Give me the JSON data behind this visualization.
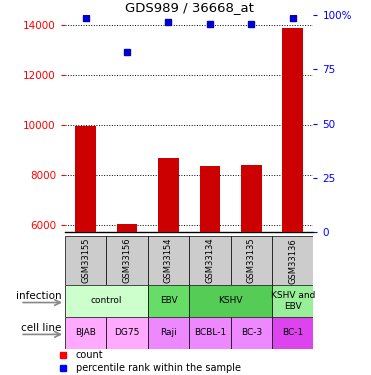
{
  "title": "GDS989 / 36668_at",
  "samples": [
    "GSM33155",
    "GSM33156",
    "GSM33154",
    "GSM33134",
    "GSM33135",
    "GSM33136"
  ],
  "counts": [
    9950,
    6020,
    8700,
    8350,
    8400,
    13900
  ],
  "percentile_ranks": [
    98.5,
    83,
    97,
    96,
    96,
    98.5
  ],
  "ylim_left": [
    5700,
    14400
  ],
  "ylim_right": [
    0,
    100
  ],
  "yticks_left": [
    6000,
    8000,
    10000,
    12000,
    14000
  ],
  "yticks_right": [
    0,
    25,
    50,
    75,
    100
  ],
  "infection_data": [
    {
      "label": "control",
      "start": 0,
      "end": 2,
      "color": "#ccffcc"
    },
    {
      "label": "EBV",
      "start": 2,
      "end": 3,
      "color": "#66dd66"
    },
    {
      "label": "KSHV",
      "start": 3,
      "end": 5,
      "color": "#55cc55"
    },
    {
      "label": "KSHV and\nEBV",
      "start": 5,
      "end": 6,
      "color": "#99ee99"
    }
  ],
  "cell_lines": [
    "BJAB",
    "DG75",
    "Raji",
    "BCBL-1",
    "BC-3",
    "BC-1"
  ],
  "cell_line_colors": [
    "#ffaaff",
    "#ffaaff",
    "#ee88ff",
    "#ee88ff",
    "#ee88ff",
    "#dd44ee"
  ],
  "bar_color": "#cc0000",
  "point_color": "#0000cc",
  "bar_width": 0.5,
  "gsm_bg_color": "#cccccc"
}
